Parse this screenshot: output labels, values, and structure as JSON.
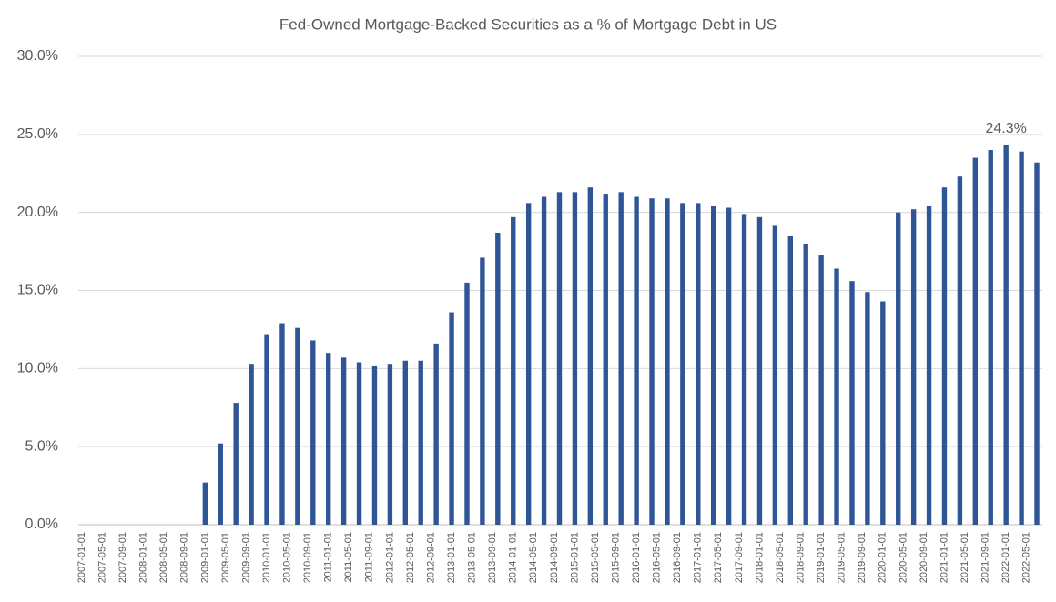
{
  "chart_data": {
    "type": "bar",
    "title": "Fed-Owned Mortgage-Backed Securities as a % of Mortgage Debt in US",
    "color": "#2f5597",
    "grid": true,
    "x": [
      "2009-01-01",
      "2009-04-01",
      "2009-07-01",
      "2009-10-01",
      "2010-01-01",
      "2010-04-01",
      "2010-07-01",
      "2010-10-01",
      "2011-01-01",
      "2011-04-01",
      "2011-07-01",
      "2011-10-01",
      "2012-01-01",
      "2012-04-01",
      "2012-07-01",
      "2012-10-01",
      "2013-01-01",
      "2013-04-01",
      "2013-07-01",
      "2013-10-01",
      "2014-01-01",
      "2014-04-01",
      "2014-07-01",
      "2014-10-01",
      "2015-01-01",
      "2015-04-01",
      "2015-07-01",
      "2015-10-01",
      "2016-01-01",
      "2016-04-01",
      "2016-07-01",
      "2016-10-01",
      "2017-01-01",
      "2017-04-01",
      "2017-07-01",
      "2017-10-01",
      "2018-01-01",
      "2018-04-01",
      "2018-07-01",
      "2018-10-01",
      "2019-01-01",
      "2019-04-01",
      "2019-07-01",
      "2019-10-01",
      "2020-01-01",
      "2020-04-01",
      "2020-07-01",
      "2020-10-01",
      "2021-01-01",
      "2021-04-01",
      "2021-07-01",
      "2021-10-01",
      "2022-01-01",
      "2022-04-01",
      "2022-07-01"
    ],
    "values": [
      2.7,
      5.2,
      7.8,
      10.3,
      12.2,
      12.9,
      12.6,
      11.8,
      11.0,
      10.7,
      10.4,
      10.2,
      10.3,
      10.5,
      10.5,
      11.6,
      13.6,
      15.5,
      17.1,
      18.7,
      19.7,
      20.6,
      21.0,
      21.3,
      21.3,
      21.6,
      21.2,
      21.3,
      21.0,
      20.9,
      20.9,
      20.6,
      20.6,
      20.4,
      20.3,
      19.9,
      19.7,
      19.2,
      18.5,
      18.0,
      17.3,
      16.4,
      15.6,
      14.9,
      14.3,
      20.0,
      20.2,
      20.4,
      21.6,
      22.3,
      23.5,
      24.0,
      24.3,
      23.9,
      23.2
    ],
    "value_labels": [
      null,
      null,
      null,
      null,
      null,
      null,
      null,
      null,
      null,
      null,
      null,
      null,
      null,
      null,
      null,
      null,
      null,
      null,
      null,
      null,
      null,
      null,
      null,
      null,
      null,
      null,
      null,
      null,
      null,
      null,
      null,
      null,
      null,
      null,
      null,
      null,
      null,
      null,
      null,
      null,
      null,
      null,
      null,
      null,
      null,
      null,
      null,
      null,
      null,
      null,
      null,
      null,
      "24.3%",
      null,
      null
    ],
    "xlim": [
      "2007-01-01",
      "2022-07-01"
    ],
    "xticks": [
      "2007-01-01",
      "2007-05-01",
      "2007-09-01",
      "2008-01-01",
      "2008-05-01",
      "2008-09-01",
      "2009-01-01",
      "2009-05-01",
      "2009-09-01",
      "2010-01-01",
      "2010-05-01",
      "2010-09-01",
      "2011-01-01",
      "2011-05-01",
      "2011-09-01",
      "2012-01-01",
      "2012-05-01",
      "2012-09-01",
      "2013-01-01",
      "2013-05-01",
      "2013-09-01",
      "2014-01-01",
      "2014-05-01",
      "2014-09-01",
      "2015-01-01",
      "2015-05-01",
      "2015-09-01",
      "2016-01-01",
      "2016-05-01",
      "2016-09-01",
      "2017-01-01",
      "2017-05-01",
      "2017-09-01",
      "2018-01-01",
      "2018-05-01",
      "2018-09-01",
      "2019-01-01",
      "2019-05-01",
      "2019-09-01",
      "2020-01-01",
      "2020-05-01",
      "2020-09-01",
      "2021-01-01",
      "2021-05-01",
      "2021-09-01",
      "2022-01-01",
      "2022-05-01"
    ],
    "ylim": [
      0,
      30
    ],
    "yticks": [
      {
        "value": 0,
        "label": "0.0%"
      },
      {
        "value": 5,
        "label": "5.0%"
      },
      {
        "value": 10,
        "label": "10.0%"
      },
      {
        "value": 15,
        "label": "15.0%"
      },
      {
        "value": 20,
        "label": "20.0%"
      },
      {
        "value": 25,
        "label": "25.0%"
      },
      {
        "value": 30,
        "label": "30.0%"
      }
    ]
  }
}
